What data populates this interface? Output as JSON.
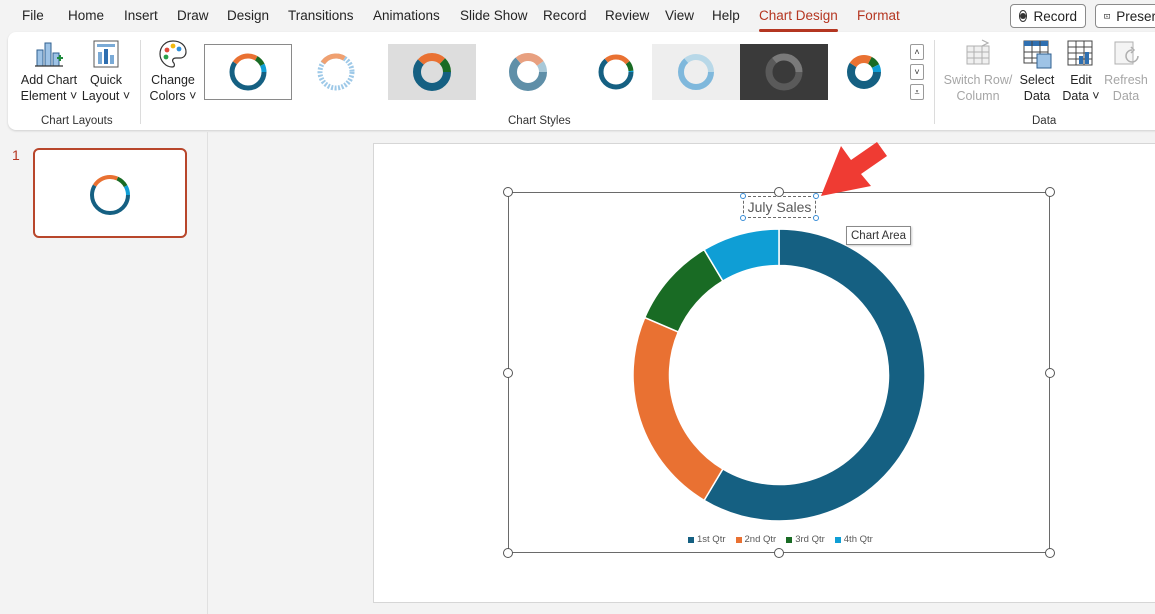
{
  "colors": {
    "accent": "#b53621",
    "q1": "#156082",
    "q2": "#e97132",
    "q3": "#196b24",
    "q4": "#0f9ed5"
  },
  "menu": {
    "tabs": [
      {
        "label": "File"
      },
      {
        "label": "Home"
      },
      {
        "label": "Insert"
      },
      {
        "label": "Draw"
      },
      {
        "label": "Design"
      },
      {
        "label": "Transitions"
      },
      {
        "label": "Animations"
      },
      {
        "label": "Slide Show"
      },
      {
        "label": "Record"
      },
      {
        "label": "Review"
      },
      {
        "label": "View"
      },
      {
        "label": "Help"
      },
      {
        "label": "Chart Design"
      },
      {
        "label": "Format"
      }
    ],
    "active_tab": "Chart Design",
    "record_button": "Record",
    "present_button": "Preser"
  },
  "ribbon": {
    "add_chart_element": {
      "line1": "Add Chart",
      "line2": "Element ˅",
      "icon": "add-chart-element-icon"
    },
    "quick_layout": {
      "line1": "Quick",
      "line2": "Layout ˅",
      "icon": "quick-layout-icon"
    },
    "chart_layouts_label": "Chart Layouts",
    "change_colors": {
      "line1": "Change",
      "line2": "Colors ˅",
      "icon": "palette-icon"
    },
    "chart_styles_label": "Chart Styles",
    "switch_row_column": {
      "line1": "Switch Row/",
      "line2": "Column",
      "icon": "switch-row-column-icon"
    },
    "select_data": {
      "line1": "Select",
      "line2": "Data",
      "icon": "select-data-icon"
    },
    "edit_data": {
      "line1": "Edit",
      "line2": "Data ˅",
      "icon": "edit-data-icon"
    },
    "refresh_data": {
      "line1": "Refresh",
      "line2": "Data",
      "icon": "refresh-data-icon"
    },
    "data_label": "Data"
  },
  "slides_pane": {
    "slide_number": "1"
  },
  "chart": {
    "tooltip": "Chart Area"
  },
  "chart_data": {
    "type": "pie",
    "variant": "doughnut",
    "title": "July Sales",
    "categories": [
      "1st Qtr",
      "2nd Qtr",
      "3rd Qtr",
      "4th Qtr"
    ],
    "values": [
      8.2,
      3.2,
      1.4,
      1.2
    ],
    "legend": "bottom",
    "hole": 0.75
  }
}
